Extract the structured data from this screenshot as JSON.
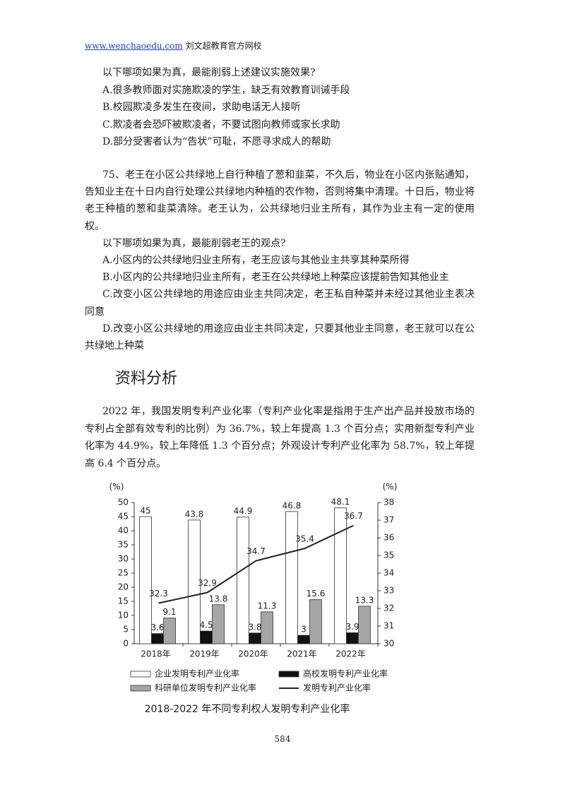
{
  "header": {
    "url": "www.wenchaoedu.com",
    "site": "刘文超教育官方网校"
  },
  "question_1": {
    "stem": "以下哪项如果为真，最能削弱上述建议实施效果?",
    "options": [
      "A.很多教师面对实施欺凌的学生，缺乏有效教育训诫手段",
      "B.校园欺凌多发生在夜间，求助电话无人接听",
      "C.欺凌者会恐吓被欺凌者，不要试图向教师或家长求助",
      "D.部分受害者认为“告状”可耻，不愿寻求成人的帮助"
    ]
  },
  "question_2": {
    "passage": "75、老王在小区公共绿地上自行种植了葱和韭菜，不久后，物业在小区内张贴通知，告知业主在十日内自行处理公共绿地内种植的农作物，否则将集中清理。十日后，物业将老王种植的葱和韭菜清除。老王认为，公共绿地归业主所有，其作为业主有一定的使用权。",
    "stem": "以下哪项如果为真，最能削弱老王的观点?",
    "options": [
      "A.小区内的公共绿地归业主所有，老王应该与其他业主共享其种菜所得",
      "B.小区内的公共绿地归业主所有，老王在公共绿地上种菜应该提前告知其他业主",
      "C.改变小区公共绿地的用途应由业主共同决定，老王私自种菜并未经过其他业主表决同意",
      "D.改变小区公共绿地的用途应由业主共同决定，只要其他业主同意，老王就可以在公共绿地上种菜"
    ]
  },
  "section_heading": "资料分析",
  "material": "2022 年，我国发明专利产业化率（专利产业化率是指用于生产出产品并投放市场的专利占全部有效专利的比例）为 36.7%，较上年提高 1.3 个百分点；实用新型专利产业化率为 44.9%，较上年降低 1.3 个百分点；外观设计专利产业化率为 58.7%，较上年提高 6.4 个百分点。",
  "chart_data": {
    "type": "bar",
    "title": "2018-2022 年不同专利权人发明专利产业化率",
    "y_label": "(%)",
    "y2_label": "(%)",
    "categories": [
      "2018年",
      "2019年",
      "2020年",
      "2021年",
      "2022年"
    ],
    "series": [
      {
        "name": "企业发明专利产业化率",
        "color": "#ffffff",
        "values": [
          45,
          43.8,
          44.9,
          46.8,
          48.1
        ]
      },
      {
        "name": "高校发明专利产业化率",
        "color": "#111111",
        "values": [
          3.6,
          4.5,
          3.8,
          3,
          3.9
        ]
      },
      {
        "name": "科研单位发明专利产业化率",
        "color": "#a6a6a6",
        "values": [
          9.1,
          13.8,
          11.3,
          15.6,
          13.3
        ]
      },
      {
        "name": "发明专利产业化率",
        "type": "line",
        "axis": "y2",
        "color": "#222222",
        "values": [
          32.3,
          32.9,
          34.7,
          35.4,
          36.7
        ]
      }
    ],
    "ylim": [
      0,
      50
    ],
    "yticks": [
      0,
      5,
      10,
      15,
      20,
      25,
      30,
      35,
      40,
      45,
      50
    ],
    "y2lim": [
      30,
      38
    ],
    "y2ticks": [
      30,
      31,
      32,
      33,
      34,
      35,
      36,
      37,
      38
    ],
    "grid": false
  },
  "page_number": 584
}
